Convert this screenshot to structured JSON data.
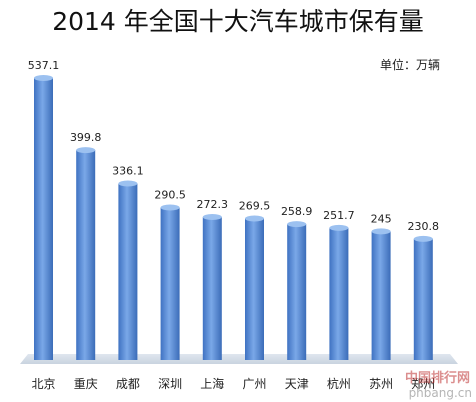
{
  "chart_data": {
    "type": "bar",
    "title": "2014 年全国十大汽车城市保有量",
    "unit_label": "单位：万辆",
    "categories": [
      "北京",
      "重庆",
      "成都",
      "深圳",
      "上海",
      "广州",
      "天津",
      "杭州",
      "苏州",
      "郑州"
    ],
    "values": [
      537.1,
      399.8,
      336.1,
      290.5,
      272.3,
      269.5,
      258.9,
      251.7,
      245,
      230.8
    ],
    "value_labels": [
      "537.1",
      "399.8",
      "336.1",
      "290.5",
      "272.3",
      "269.5",
      "258.9",
      "251.7",
      "245",
      "230.8"
    ],
    "ylim": [
      0,
      537.1
    ],
    "grid": false,
    "bar_color": "#5b8fd6"
  },
  "watermark": {
    "line1": "中国排行网",
    "line2": "phbang.cn"
  }
}
